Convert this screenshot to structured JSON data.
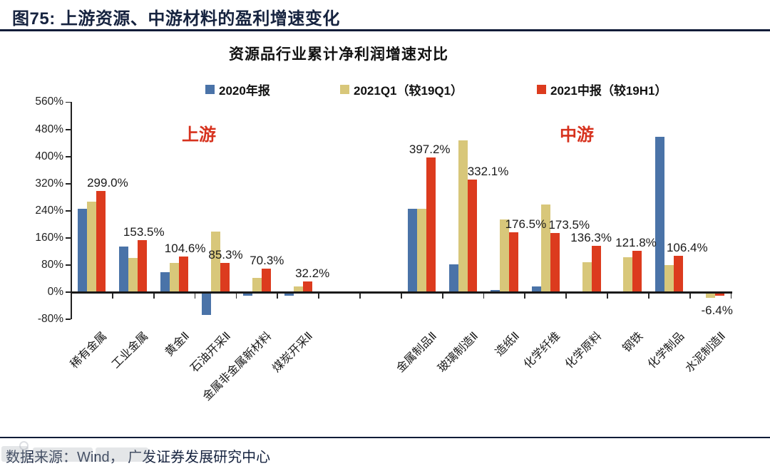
{
  "page": {
    "header_title": "图75:  上游资源、中游材料的盈利增速变化"
  },
  "footer": {
    "source": "数据来源：Wind， 广发证券发展研究中心"
  },
  "chart_data": {
    "type": "bar",
    "title": "资源品行业累计净利润增速对比",
    "categories": [
      "稀有金属",
      "工业金属",
      "黄金Ⅱ",
      "石油开采Ⅱ",
      "金属非金属新材料",
      "煤炭开采Ⅱ",
      "金属制品Ⅱ",
      "玻璃制造Ⅱ",
      "造纸Ⅱ",
      "化学纤维",
      "化学原料",
      "钢铁",
      "化学制品",
      "水泥制造Ⅱ"
    ],
    "series": [
      {
        "name": "2020年报",
        "color": "#4a73a8",
        "values": [
          246,
          135,
          59,
          -65,
          -8,
          -8,
          246,
          82,
          6,
          17,
          0,
          0,
          458,
          0
        ]
      },
      {
        "name": "2021Q1（较19Q1）",
        "color": "#d8c77a",
        "values": [
          267,
          101,
          86,
          179,
          42,
          17,
          245,
          447,
          214,
          259,
          88,
          103,
          80,
          -13
        ]
      },
      {
        "name": "2021中报（较19H1）",
        "color": "#dc3b1e",
        "values": [
          299.0,
          153.5,
          104.6,
          85.3,
          70.3,
          32.2,
          397.2,
          332.1,
          176.5,
          173.5,
          136.3,
          121.8,
          106.4,
          -6.4
        ]
      }
    ],
    "data_labels": [
      {
        "text": "299.0%",
        "dx": 22
      },
      {
        "text": "153.5%",
        "dx": 15
      },
      {
        "text": "104.6%",
        "dx": 15
      },
      {
        "text": "85.3%",
        "dx": 14
      },
      {
        "text": "70.3%",
        "dx": 14
      },
      {
        "text": "32.2%",
        "dx": 20
      },
      {
        "text": "397.2%",
        "dx": 11
      },
      {
        "text": "332.1%",
        "dx": 35
      },
      {
        "text": "176.5%",
        "dx": 30
      },
      {
        "text": "173.5%",
        "dx": 33
      },
      {
        "text": "136.3%",
        "dx": 6
      },
      {
        "text": "121.8%",
        "dx": 11
      },
      {
        "text": "106.4%",
        "dx": 25
      },
      {
        "text": "-6.4%",
        "dx": 9,
        "below": true
      }
    ],
    "yticks": [
      "560%",
      "480%",
      "400%",
      "320%",
      "240%",
      "160%",
      "80%",
      "0%",
      "-80%"
    ],
    "ylim": [
      -80,
      560
    ],
    "ytick_step": 80,
    "grid": false,
    "legend_position": "top",
    "annotations": [
      {
        "text": "上游"
      },
      {
        "text": "中游"
      }
    ],
    "gap_after_index": 5,
    "xlabel": "",
    "ylabel": ""
  }
}
